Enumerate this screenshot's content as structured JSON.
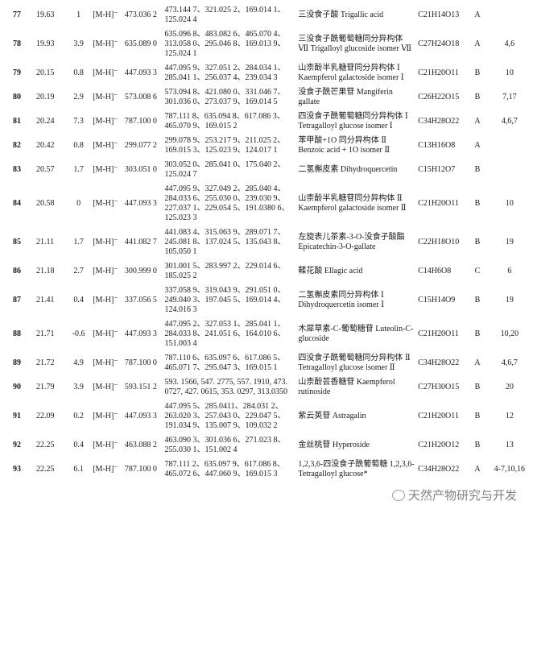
{
  "table": {
    "rows": [
      {
        "no": "77",
        "rt": "19.63",
        "ppm": "1",
        "ion": "[M-H]⁻",
        "mz": "473.036 2",
        "fragments": "473.144 7、321.025 2、169.014 1、125.024 4",
        "name": "三没食子酸 Trigallic acid",
        "formula": "C21H14O13",
        "category": "A",
        "refs": ""
      },
      {
        "no": "78",
        "rt": "19.93",
        "ppm": "3.9",
        "ion": "[M-H]⁻",
        "mz": "635.089 0",
        "fragments": "635.096 8、483.082 6、465.070 4、313.058 0、295.046 8、169.013 9、125.024 1",
        "name": "三没食子酰葡萄糖同分异构体 Ⅶ Trigalloyl glucoside isomer Ⅶ",
        "formula": "C27H24O18",
        "category": "A",
        "refs": "4,6"
      },
      {
        "no": "79",
        "rt": "20.15",
        "ppm": "0.8",
        "ion": "[M-H]⁻",
        "mz": "447.093 3",
        "fragments": "447.095 9、327.051 2、284.034 1、285.041 1、256.037 4、239.034 3",
        "name": "山柰酚半乳糖苷同分异构体 Ⅰ Kaempferol galactoside isomer Ⅰ",
        "formula": "C21H20O11",
        "category": "B",
        "refs": "10"
      },
      {
        "no": "80",
        "rt": "20.19",
        "ppm": "2.9",
        "ion": "[M-H]⁻",
        "mz": "573.008 6",
        "fragments": "573.094 8、421.080 0、331.046 7、301.036 0、273.037 9、169.014 5",
        "name": "没食子酰芒果苷 Mangiferin gallate",
        "formula": "C26H22O15",
        "category": "B",
        "refs": "7,17"
      },
      {
        "no": "81",
        "rt": "20.24",
        "ppm": "7.3",
        "ion": "[M-H]⁻",
        "mz": "787.100 0",
        "fragments": "787.111 8、635.094 8、617.086 3、465.070 9、169.015 2",
        "name": "四没食子酰葡萄糖同分异构体 Ⅰ Tetragalloyl glucose isomer Ⅰ",
        "formula": "C34H28O22",
        "category": "A",
        "refs": "4,6,7"
      },
      {
        "no": "82",
        "rt": "20.42",
        "ppm": "0.8",
        "ion": "[M-H]⁻",
        "mz": "299.077 2",
        "fragments": "299.078 9、253.217 9、211.025 2、169.015 3、125.023 9、124.017 1",
        "name": "苯甲酸+1O 同分异构体 Ⅱ Benzoic acid + 1O isomer Ⅱ",
        "formula": "C13H16O8",
        "category": "A",
        "refs": ""
      },
      {
        "no": "83",
        "rt": "20.57",
        "ppm": "1.7",
        "ion": "[M-H]⁻",
        "mz": "303.051 0",
        "fragments": "303.052 0、285.041 0、175.040 2、125.024 7",
        "name": "二氢槲皮素 Dihydroquercetin",
        "formula": "C15H12O7",
        "category": "B",
        "refs": ""
      },
      {
        "no": "84",
        "rt": "20.58",
        "ppm": "0",
        "ion": "[M-H]⁻",
        "mz": "447.093 3",
        "fragments": "447.095 9、327.049 2、285.040 4、284.033 6、255.030 0、239.030 9、227.037 1、229.054 5、191.0380 6、125.023 3",
        "name": "山柰酚半乳糖苷同分异构体 Ⅱ Kaempferol galactoside isomer Ⅱ",
        "formula": "C21H20O11",
        "category": "B",
        "refs": "10"
      },
      {
        "no": "85",
        "rt": "21.11",
        "ppm": "1.7",
        "ion": "[M-H]⁻",
        "mz": "441.082 7",
        "fragments": "441.083 4、315.063 9、289.071 7、245.081 8、137.024 5、135.043 8、105.050 1",
        "name": "左旋表儿茶素-3-O-没食子酸酯 Epicatechin-3-O-gallate",
        "formula": "C22H18O10",
        "category": "B",
        "refs": "19"
      },
      {
        "no": "86",
        "rt": "21.18",
        "ppm": "2.7",
        "ion": "[M-H]⁻",
        "mz": "300.999 0",
        "fragments": "301.001 5、283.997 2、229.014 6、185.025 2",
        "name": "鞣花酸 Ellagic acid",
        "formula": "C14H6O8",
        "category": "C",
        "refs": "6"
      },
      {
        "no": "87",
        "rt": "21.41",
        "ppm": "0.4",
        "ion": "[M-H]⁻",
        "mz": "337.056 5",
        "fragments": "337.058 9、319.043 9、291.051 0、249.040 3、197.045 5、169.014 4、124.016 3",
        "name": "二氢槲皮素同分异构体 Ⅰ Dihydroquercetin isomer Ⅰ",
        "formula": "C15H14O9",
        "category": "B",
        "refs": "19"
      },
      {
        "no": "88",
        "rt": "21.71",
        "ppm": "-0.6",
        "ion": "[M-H]⁻",
        "mz": "447.093 3",
        "fragments": "447.095 2、327.053 1、285.041 1、284.033 8、241.051 6、164.010 6、151.003 4",
        "name": "木犀草素-C-葡萄糖苷 Luteolin-C-glucoside",
        "formula": "C21H20O11",
        "category": "B",
        "refs": "10,20"
      },
      {
        "no": "89",
        "rt": "21.72",
        "ppm": "4.9",
        "ion": "[M-H]⁻",
        "mz": "787.100 0",
        "fragments": "787.110 6、635.097 6、617.086 5、465.071 7、295.047 3、169.015 1",
        "name": "四没食子酰葡萄糖同分异构体 Ⅱ Tetragalloyl glucose isomer Ⅱ",
        "formula": "C34H28O22",
        "category": "A",
        "refs": "4,6,7"
      },
      {
        "no": "90",
        "rt": "21.79",
        "ppm": "3.9",
        "ion": "[M-H]⁻",
        "mz": "593.151 2",
        "fragments": "593. 1566, 547. 2775, 557. 1910, 473. 0727, 427. 0615, 353. 0297, 313.0350",
        "name": "山柰酚芸香糖苷 Kaempferol rutinoside",
        "formula": "C27H30O15",
        "category": "B",
        "refs": "20"
      },
      {
        "no": "91",
        "rt": "22.09",
        "ppm": "0.2",
        "ion": "[M-H]⁻",
        "mz": "447.093 3",
        "fragments": "447.095 5、285.0411、284.031 2、263.020 3、257.043 0、229.047 5、191.034 9、135.007 9、109.032 2",
        "name": "紫云英苷 Astragalin",
        "formula": "C21H20O11",
        "category": "B",
        "refs": "12"
      },
      {
        "no": "92",
        "rt": "22.25",
        "ppm": "0.4",
        "ion": "[M-H]⁻",
        "mz": "463.088 2",
        "fragments": "463.090 3、301.036 6、271.023 8、255.030 1、151.002 4",
        "name": "金丝桃苷 Hyperoside",
        "formula": "C21H20O12",
        "category": "B",
        "refs": "13"
      },
      {
        "no": "93",
        "rt": "22.25",
        "ppm": "6.1",
        "ion": "[M-H]⁻",
        "mz": "787.100 0",
        "fragments": "787.111 2、635.097 9、617.086 8、465.072 6、447.060 9、169.015 3",
        "name": "1,2,3,6-四没食子酰葡萄糖 1,2,3,6-Tetragalloyl glucose*",
        "formula": "C34H28O22",
        "category": "A",
        "refs": "4-7,10,16"
      }
    ]
  },
  "watermark": {
    "text": "天然产物研究与开发",
    "icon": "wechat-icon"
  }
}
